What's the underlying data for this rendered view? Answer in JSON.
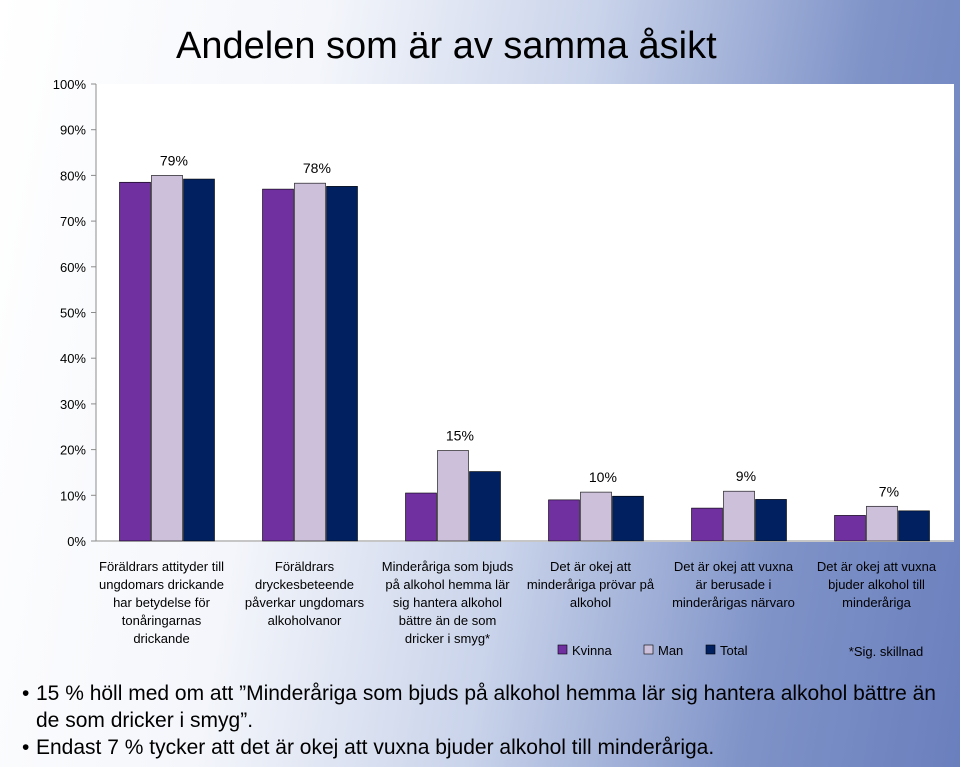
{
  "slide": {
    "title": "Andelen som är av samma åsikt",
    "bullets": [
      "15 % höll med om att ”Minderåriga som bjuds på alkohol hemma lär sig hantera alkohol bättre än de som dricker i smyg”.",
      "Endast 7 % tycker att det är okej att vuxna bjuder alkohol till minderåriga."
    ],
    "footnote": "*Sig. skillnad"
  },
  "chart_data": {
    "type": "bar",
    "categories": [
      [
        "Föräldrars attityder till",
        "ungdomars drickande",
        "har betydelse för",
        "tonåringarnas",
        "drickande"
      ],
      [
        "Föräldrars",
        "dryckesbeteende",
        "påverkar ungdomars",
        "alkoholvanor"
      ],
      [
        "Minderåriga som bjuds",
        "på alkohol hemma lär",
        "sig hantera alkohol",
        "bättre än de som",
        "dricker i smyg*"
      ],
      [
        "Det är okej att",
        "minderåriga prövar på",
        "alkohol"
      ],
      [
        "Det är okej att vuxna",
        "är berusade i",
        "minderårigas närvaro"
      ],
      [
        "Det är okej att vuxna",
        "bjuder alkohol till",
        "minderåriga"
      ]
    ],
    "series": [
      {
        "name": "Kvinna",
        "color": "#7030a0",
        "values": [
          78.5,
          77.0,
          10.5,
          9.0,
          7.2,
          5.6
        ]
      },
      {
        "name": "Man",
        "color": "#ccc0da",
        "values": [
          80.0,
          78.3,
          19.8,
          10.7,
          10.9,
          7.6
        ]
      },
      {
        "name": "Total",
        "color": "#002060",
        "values": [
          79.2,
          77.6,
          15.2,
          9.8,
          9.1,
          6.6
        ]
      }
    ],
    "data_labels": [
      "79%",
      "78%",
      "15%",
      "10%",
      "9%",
      "7%"
    ],
    "y_ticks": [
      "0%",
      "10%",
      "20%",
      "30%",
      "40%",
      "50%",
      "60%",
      "70%",
      "80%",
      "90%",
      "100%"
    ],
    "ylim": [
      0,
      100
    ],
    "grid": false,
    "legend_position": "bottom"
  }
}
